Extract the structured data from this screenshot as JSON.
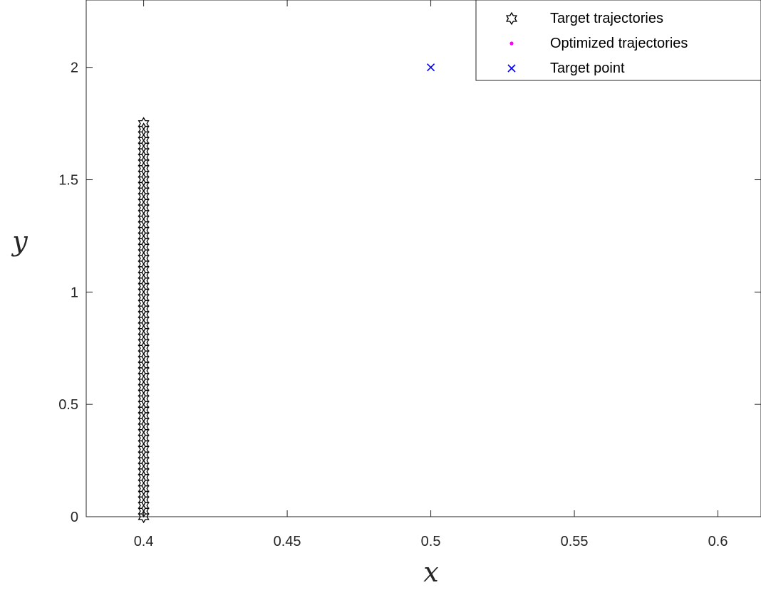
{
  "chart_data": {
    "type": "scatter",
    "xlabel": "x",
    "ylabel": "y",
    "xlim": [
      0.38,
      0.615
    ],
    "ylim": [
      0,
      2.3
    ],
    "xticks": [
      0.4,
      0.45,
      0.5,
      0.55,
      0.6
    ],
    "xtick_labels": [
      "0.4",
      "0.45",
      "0.5",
      "0.55",
      "0.6"
    ],
    "yticks": [
      0,
      0.5,
      1,
      1.5,
      2
    ],
    "ytick_labels": [
      "0",
      "0.5",
      "1",
      "1.5",
      "2"
    ],
    "grid": false,
    "legend_position": "top-right",
    "colors": {
      "target": "#000000",
      "optimized": "#ff00ff",
      "point": "#0000ff",
      "axis": "#262626"
    },
    "legend": [
      {
        "label": "Target trajectories",
        "marker": "hexagram"
      },
      {
        "label": "Optimized trajectories",
        "marker": "dot"
      },
      {
        "label": "Target point",
        "marker": "x"
      }
    ],
    "target_point": {
      "x": 0.5,
      "y": 2.0
    },
    "series": [
      {
        "kind": "target",
        "x": [
          0.4,
          0.4,
          0.4,
          0.4,
          0.4,
          0.4,
          0.4,
          0.4,
          0.4,
          0.4,
          0.4,
          0.4,
          0.4,
          0.4,
          0.4,
          0.4,
          0.4,
          0.4,
          0.4,
          0.4,
          0.4,
          0.4,
          0.4,
          0.4,
          0.4,
          0.4,
          0.4,
          0.4,
          0.4,
          0.4,
          0.4,
          0.4,
          0.4,
          0.4,
          0.4,
          0.4,
          0.4,
          0.4,
          0.4,
          0.4,
          0.4,
          0.4,
          0.4,
          0.4,
          0.4,
          0.4,
          0.4,
          0.4,
          0.4,
          0.4,
          0.4,
          0.4,
          0.4,
          0.4,
          0.4,
          0.4,
          0.4,
          0.4,
          0.4,
          0.4,
          0.4,
          0.4,
          0.4,
          0.4,
          0.4,
          0.4,
          0.4,
          0.4,
          0.4,
          0.4,
          0.4
        ],
        "y": [
          0.0,
          0.025,
          0.05,
          0.075,
          0.1,
          0.125,
          0.15,
          0.175,
          0.2,
          0.225,
          0.25,
          0.275,
          0.3,
          0.325,
          0.35,
          0.375,
          0.4,
          0.425,
          0.45,
          0.475,
          0.5,
          0.525,
          0.55,
          0.575,
          0.6,
          0.625,
          0.65,
          0.675,
          0.7,
          0.725,
          0.75,
          0.775,
          0.8,
          0.825,
          0.85,
          0.875,
          0.9,
          0.925,
          0.95,
          0.975,
          1.0,
          1.025,
          1.05,
          1.075,
          1.1,
          1.125,
          1.15,
          1.175,
          1.2,
          1.225,
          1.25,
          1.275,
          1.3,
          1.325,
          1.35,
          1.375,
          1.4,
          1.425,
          1.45,
          1.475,
          1.5,
          1.525,
          1.55,
          1.575,
          1.6,
          1.625,
          1.65,
          1.675,
          1.7,
          1.725,
          1.75
        ]
      }
    ]
  }
}
